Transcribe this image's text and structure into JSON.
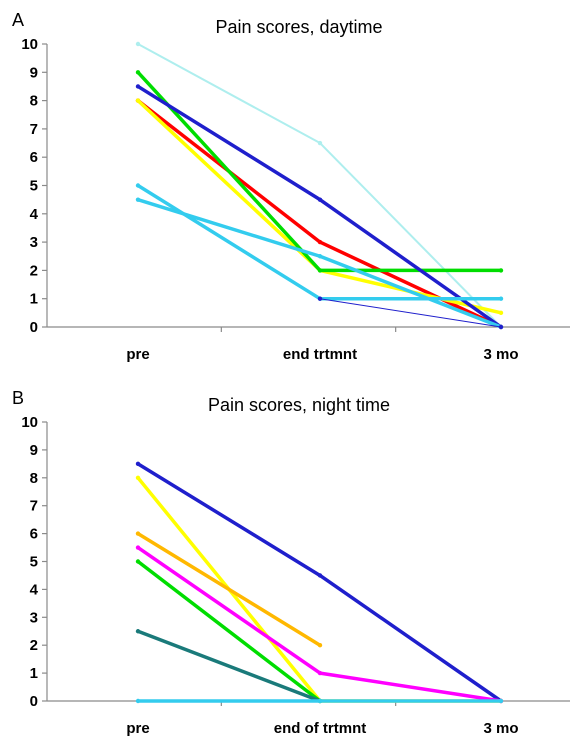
{
  "chart_data": [
    {
      "panel_label": "A",
      "type": "line",
      "title": "Pain scores, daytime",
      "xlabel": "",
      "ylabel": "",
      "categories": [
        "pre",
        "end trtmnt",
        "3 mo"
      ],
      "ylim": [
        0,
        10
      ],
      "yticks": [
        0,
        1,
        2,
        3,
        4,
        5,
        6,
        7,
        8,
        9,
        10
      ],
      "grid": false,
      "legend": "none",
      "series": [
        {
          "color": "#aeeeee",
          "values": [
            10,
            6.5,
            0
          ],
          "width": 2
        },
        {
          "color": "#ff0000",
          "values": [
            8,
            3,
            0
          ],
          "width": 3.5
        },
        {
          "color": "#ffff00",
          "values": [
            8,
            2,
            0.5
          ],
          "width": 3.5
        },
        {
          "color": "#00dd00",
          "values": [
            9,
            2,
            2
          ],
          "width": 3.5
        },
        {
          "color": "#1f1fcc",
          "values": [
            8.5,
            4.5,
            0
          ],
          "width": 3.5
        },
        {
          "color": "#33ccee",
          "values": [
            4.5,
            2.5,
            0
          ],
          "width": 3.5
        },
        {
          "color": "#33ccee",
          "values": [
            5,
            1,
            1
          ],
          "width": 3.5
        },
        {
          "color": "#1f1fcc",
          "values": [
            null,
            1,
            0
          ],
          "width": 1
        }
      ]
    },
    {
      "panel_label": "B",
      "type": "line",
      "title": "Pain scores, night time",
      "xlabel": "",
      "ylabel": "",
      "categories": [
        "pre",
        "end of trtmnt",
        "3 mo"
      ],
      "ylim": [
        0,
        10
      ],
      "yticks": [
        0,
        1,
        2,
        3,
        4,
        5,
        6,
        7,
        8,
        9,
        10
      ],
      "grid": false,
      "legend": "none",
      "series": [
        {
          "color": "#1f1fcc",
          "values": [
            8.5,
            4.5,
            0
          ],
          "width": 3.5
        },
        {
          "color": "#ffff00",
          "values": [
            8,
            0,
            0
          ],
          "width": 3.5
        },
        {
          "color": "#ffb800",
          "values": [
            6,
            2,
            null
          ],
          "width": 3.5
        },
        {
          "color": "#ff00ff",
          "values": [
            5.5,
            1,
            0
          ],
          "width": 3.5
        },
        {
          "color": "#00dd00",
          "values": [
            5,
            0,
            null
          ],
          "width": 3.5
        },
        {
          "color": "#1a7a7a",
          "values": [
            2.5,
            0,
            null
          ],
          "width": 3.5
        },
        {
          "color": "#33ccee",
          "values": [
            0,
            0,
            0
          ],
          "width": 3.5
        }
      ]
    }
  ]
}
